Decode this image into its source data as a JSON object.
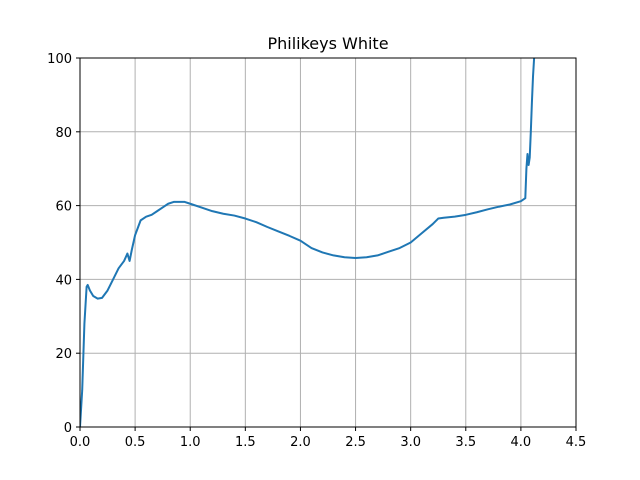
{
  "chart_data": {
    "type": "line",
    "title": "Philikeys White",
    "xlabel": "",
    "ylabel": "",
    "xlim": [
      0,
      4.5
    ],
    "ylim": [
      0,
      100
    ],
    "xticks": [
      "0.0",
      "0.5",
      "1.0",
      "1.5",
      "2.0",
      "2.5",
      "3.0",
      "3.5",
      "4.0",
      "4.5"
    ],
    "yticks": [
      "0",
      "20",
      "40",
      "60",
      "80",
      "100"
    ],
    "grid": true,
    "line_color": "#1f77b4",
    "series": [
      {
        "x": [
          0.0,
          0.02,
          0.04,
          0.06,
          0.07,
          0.09,
          0.12,
          0.16,
          0.2,
          0.25,
          0.3,
          0.35,
          0.4,
          0.43,
          0.45,
          0.47,
          0.5,
          0.55,
          0.6,
          0.65,
          0.7,
          0.75,
          0.8,
          0.85,
          0.9,
          0.95,
          1.0,
          1.1,
          1.2,
          1.3,
          1.4,
          1.5,
          1.6,
          1.7,
          1.8,
          1.9,
          2.0,
          2.1,
          2.2,
          2.3,
          2.4,
          2.5,
          2.6,
          2.7,
          2.8,
          2.9,
          3.0,
          3.1,
          3.2,
          3.25,
          3.3,
          3.4,
          3.5,
          3.6,
          3.7,
          3.8,
          3.9,
          4.0,
          4.04,
          4.05,
          4.06,
          4.07,
          4.08,
          4.09,
          4.1,
          4.11,
          4.12,
          4.13,
          4.14
        ],
        "y": [
          0,
          10,
          28,
          38,
          38.5,
          37,
          35.5,
          34.8,
          35,
          37,
          40,
          43,
          45,
          47,
          45,
          48,
          52,
          56,
          57,
          57.5,
          58.5,
          59.5,
          60.5,
          61,
          61,
          61,
          60.5,
          59.5,
          58.5,
          57.8,
          57.3,
          56.5,
          55.5,
          54.2,
          53,
          51.8,
          50.5,
          48.5,
          47.3,
          46.5,
          46,
          45.8,
          46,
          46.5,
          47.5,
          48.5,
          50,
          52.5,
          55,
          56.5,
          56.7,
          57,
          57.5,
          58.2,
          59,
          59.7,
          60.3,
          61.2,
          62,
          70,
          74,
          71,
          73,
          80,
          88,
          95,
          100,
          103,
          106
        ]
      }
    ]
  }
}
